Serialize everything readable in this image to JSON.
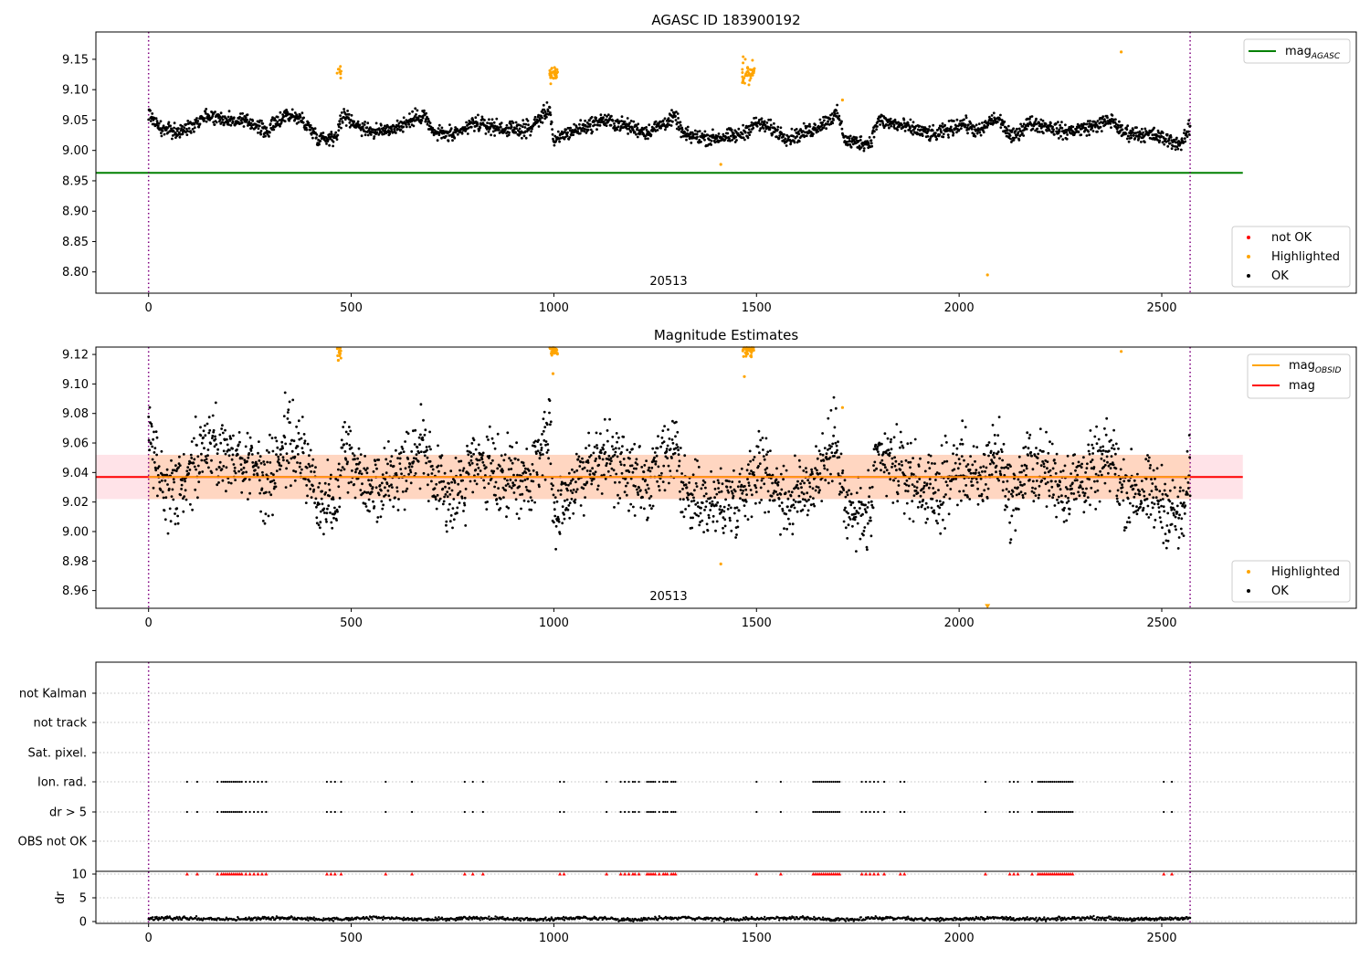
{
  "figure": {
    "background": "#ffffff",
    "colors": {
      "ok": "#000000",
      "highlighted": "#ffa500",
      "not_ok": "#ff0000",
      "agasc_line": "#008000",
      "mean_line": "#ff0000",
      "obsid_line": "#ffa500",
      "band_obsid": "#ffd0b0",
      "band_mag": "#ffc0cb",
      "obs_boundary": "#800080"
    }
  },
  "obsid_label": "20513",
  "obs_boundaries": [
    0,
    2570
  ],
  "chart_data": [
    {
      "type": "scatter",
      "title": "AGASC ID 183900192",
      "xlim": [
        -130,
        2980
      ],
      "ylim": [
        8.765,
        9.195
      ],
      "xticks": [
        0,
        500,
        1000,
        1500,
        2000,
        2500
      ],
      "yticks": [
        8.8,
        8.85,
        8.9,
        8.95,
        9.0,
        9.05,
        9.1,
        9.15
      ],
      "ytick_decimals": 2,
      "mag_agasc": 8.963,
      "mag_agasc_xrange": [
        -130,
        2700
      ],
      "legend_lines": [
        {
          "label_main": "mag",
          "label_sub": "AGASC",
          "color": "#008000"
        }
      ],
      "legend_points": [
        {
          "label": "not OK",
          "color": "#ff0000"
        },
        {
          "label": "Highlighted",
          "color": "#ffa500"
        },
        {
          "label": "OK",
          "color": "#000000"
        }
      ],
      "series": [
        {
          "name": "OK",
          "color": "#000000",
          "profile": [
            [
              0,
              9.062
            ],
            [
              30,
              9.035
            ],
            [
              80,
              9.03
            ],
            [
              140,
              9.058
            ],
            [
              200,
              9.05
            ],
            [
              260,
              9.045
            ],
            [
              290,
              9.03
            ],
            [
              340,
              9.06
            ],
            [
              380,
              9.05
            ],
            [
              420,
              9.02
            ],
            [
              460,
              9.022
            ],
            [
              480,
              9.058
            ],
            [
              520,
              9.04
            ],
            [
              560,
              9.03
            ],
            [
              620,
              9.04
            ],
            [
              680,
              9.06
            ],
            [
              700,
              9.03
            ],
            [
              760,
              9.025
            ],
            [
              800,
              9.045
            ],
            [
              880,
              9.035
            ],
            [
              940,
              9.035
            ],
            [
              990,
              9.07
            ],
            [
              1000,
              9.01
            ],
            [
              1020,
              9.025
            ],
            [
              1060,
              9.035
            ],
            [
              1120,
              9.05
            ],
            [
              1180,
              9.04
            ],
            [
              1230,
              9.03
            ],
            [
              1300,
              9.055
            ],
            [
              1320,
              9.025
            ],
            [
              1390,
              9.02
            ],
            [
              1460,
              9.025
            ],
            [
              1500,
              9.045
            ],
            [
              1540,
              9.035
            ],
            [
              1580,
              9.02
            ],
            [
              1640,
              9.035
            ],
            [
              1700,
              9.06
            ],
            [
              1720,
              9.015
            ],
            [
              1780,
              9.012
            ],
            [
              1800,
              9.05
            ],
            [
              1860,
              9.04
            ],
            [
              1940,
              9.025
            ],
            [
              2010,
              9.045
            ],
            [
              2050,
              9.03
            ],
            [
              2080,
              9.05
            ],
            [
              2100,
              9.05
            ],
            [
              2130,
              9.02
            ],
            [
              2170,
              9.045
            ],
            [
              2220,
              9.04
            ],
            [
              2260,
              9.03
            ],
            [
              2330,
              9.04
            ],
            [
              2380,
              9.05
            ],
            [
              2400,
              9.03
            ],
            [
              2480,
              9.025
            ],
            [
              2550,
              9.01
            ],
            [
              2570,
              9.04
            ]
          ],
          "noise": 0.006
        },
        {
          "name": "Highlighted",
          "color": "#ffa500",
          "clusters": [
            [
              470,
              9.128,
              12,
              0.008,
              8
            ],
            [
              1000,
              9.125,
              22,
              0.008,
              32
            ],
            [
              1480,
              9.128,
              30,
              0.01,
              40
            ]
          ],
          "points": [
            [
              1712,
              9.083
            ],
            [
              1412,
              8.977
            ],
            [
              2070,
              8.795
            ],
            [
              2400,
              9.162
            ]
          ]
        }
      ]
    },
    {
      "type": "scatter",
      "title": "Magnitude Estimates",
      "xlim": [
        -130,
        2980
      ],
      "ylim": [
        8.948,
        9.125
      ],
      "xticks": [
        0,
        500,
        1000,
        1500,
        2000,
        2500
      ],
      "yticks": [
        8.96,
        8.98,
        9.0,
        9.02,
        9.04,
        9.06,
        9.08,
        9.1,
        9.12
      ],
      "ytick_decimals": 2,
      "mag_mean": 9.037,
      "mag_band": [
        9.022,
        9.052
      ],
      "band_xrange": [
        -130,
        2700
      ],
      "mag_obsid": 9.037,
      "obsid_band": [
        9.022,
        9.052
      ],
      "obsid_xrange": [
        0,
        2570
      ],
      "legend_lines": [
        {
          "label_main": "mag",
          "label_sub": "OBSID",
          "color": "#ffa500"
        },
        {
          "label_main": "mag",
          "label_sub": "",
          "color": "#ff0000"
        }
      ],
      "legend_points": [
        {
          "label": "Highlighted",
          "color": "#ffa500"
        },
        {
          "label": "OK",
          "color": "#000000"
        }
      ],
      "series": [
        {
          "name": "OK",
          "color": "#000000",
          "same_as_panel": 0,
          "noise": 0.012
        },
        {
          "name": "Highlighted",
          "color": "#ffa500",
          "clusters": [
            [
              470,
              9.122,
              10,
              0.003,
              10
            ],
            [
              1000,
              9.123,
              20,
              0.002,
              30
            ],
            [
              1480,
              9.123,
              28,
              0.002,
              40
            ]
          ],
          "points": [
            [
              468,
              9.116
            ],
            [
              998,
              9.107
            ],
            [
              1470,
              9.105
            ],
            [
              1712,
              9.084
            ],
            [
              1412,
              8.978
            ],
            [
              2400,
              9.122
            ]
          ],
          "clipped": [
            [
              2070,
              8.949
            ]
          ]
        }
      ]
    },
    {
      "type": "scatter",
      "title": "",
      "xlim": [
        -130,
        2980
      ],
      "ylim": [
        -0.5,
        6.5
      ],
      "xticks": [
        0,
        500,
        1000,
        1500,
        2000,
        2500
      ],
      "flag_rows": [
        "not Kalman",
        "not track",
        "Sat. pixel.",
        "Ion. rad.",
        "dr > 5",
        "OBS not OK"
      ],
      "dr_ticks": [
        0,
        5,
        10
      ],
      "dr_label": "dr",
      "flag_x": [
        95,
        120,
        170,
        180,
        185,
        190,
        195,
        200,
        205,
        210,
        215,
        220,
        225,
        230,
        240,
        250,
        260,
        270,
        280,
        290,
        440,
        450,
        460,
        475,
        585,
        650,
        780,
        800,
        825,
        1015,
        1025,
        1130,
        1165,
        1175,
        1185,
        1195,
        1200,
        1210,
        1230,
        1235,
        1240,
        1245,
        1250,
        1260,
        1270,
        1275,
        1280,
        1290,
        1295,
        1300,
        1500,
        1560,
        1640,
        1645,
        1650,
        1655,
        1660,
        1665,
        1670,
        1675,
        1680,
        1685,
        1690,
        1695,
        1700,
        1705,
        1760,
        1770,
        1780,
        1790,
        1800,
        1815,
        1855,
        1865,
        2065,
        2125,
        2135,
        2145,
        2180,
        2195,
        2200,
        2205,
        2210,
        2215,
        2220,
        2225,
        2230,
        2235,
        2240,
        2245,
        2250,
        2255,
        2260,
        2265,
        2270,
        2275,
        2280,
        2505,
        2525
      ],
      "series": [
        {
          "name": "Ion. rad.",
          "color": "#000000",
          "row": 3
        },
        {
          "name": "dr > 5",
          "color": "#000000",
          "row": 4
        },
        {
          "name": "dr",
          "color": "#000000",
          "mean": 0.6,
          "noise": 0.3
        },
        {
          "name": "dr > 5 marker",
          "color": "#ff0000",
          "level": 10
        }
      ]
    }
  ]
}
